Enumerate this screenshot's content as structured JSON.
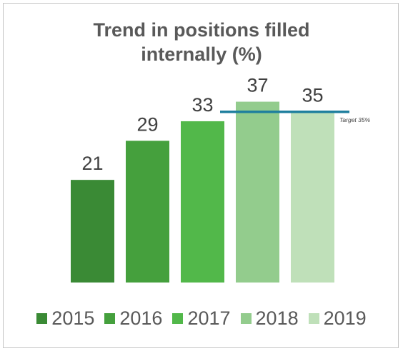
{
  "chart_data": {
    "type": "bar",
    "title_lines": [
      "Trend in positions filled",
      "internally (%)"
    ],
    "categories": [
      "2015",
      "2016",
      "2017",
      "2018",
      "2019"
    ],
    "values": [
      21,
      29,
      33,
      37,
      35
    ],
    "colors": [
      "#3a8a35",
      "#45a03d",
      "#52b84a",
      "#93cc8d",
      "#bfe0b9"
    ],
    "target": {
      "value": 35,
      "label": "Target 35%",
      "color": "#1f7f9e"
    },
    "legend": [
      "2015",
      "2016",
      "2017",
      "2018",
      "2019"
    ],
    "legend_position": "bottom",
    "ylim": [
      0,
      40
    ],
    "grid": false
  }
}
